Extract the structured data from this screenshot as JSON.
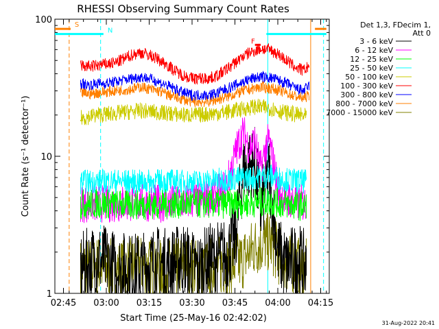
{
  "chart_data": {
    "type": "line",
    "title": "RHESSI Observing Summary Count Rates",
    "xlabel": "Start Time (25-May-16 02:42:02)",
    "ylabel": "Count Rate (s⁻¹ detector⁻¹)",
    "x_unit": "minutes after 02:42:02",
    "xlim": [
      0,
      96
    ],
    "ylim": [
      1,
      100
    ],
    "y_scale": "log",
    "x_ticks": [
      {
        "value": 3,
        "label": "02:45"
      },
      {
        "value": 18,
        "label": "03:00"
      },
      {
        "value": 33,
        "label": "03:15"
      },
      {
        "value": 48,
        "label": "03:30"
      },
      {
        "value": 63,
        "label": "03:45"
      },
      {
        "value": 78,
        "label": "04:00"
      },
      {
        "value": 93,
        "label": "04:15"
      }
    ],
    "y_ticks": [
      {
        "value": 1,
        "label": "1"
      },
      {
        "value": 10,
        "label": "10"
      },
      {
        "value": 100,
        "label": "100"
      }
    ],
    "legend_title": [
      "Det 1,3, FDecim 1,",
      "Att 0"
    ],
    "legend_position": "right",
    "series": [
      {
        "name": "3 - 6 keV",
        "color": "#000000",
        "x": [
          9,
          15,
          20,
          25,
          30,
          35,
          40,
          45,
          50,
          55,
          60,
          63,
          66,
          70,
          72,
          75,
          78,
          81,
          85,
          88
        ],
        "values": [
          1.5,
          1.8,
          1.6,
          1.5,
          1.5,
          1.7,
          1.6,
          1.8,
          1.5,
          1.8,
          1.9,
          2.5,
          8.0,
          9.0,
          4.0,
          7.5,
          2.0,
          1.6,
          1.8,
          1.5
        ]
      },
      {
        "name": "6 - 12 keV",
        "color": "#ff00ff",
        "x": [
          9,
          20,
          30,
          40,
          50,
          55,
          60,
          62,
          64,
          66,
          68,
          70,
          72,
          74,
          75,
          76,
          78,
          80,
          85,
          88
        ],
        "values": [
          4.5,
          4.5,
          4.6,
          4.5,
          4.8,
          5.0,
          6.0,
          8.5,
          12.0,
          15.0,
          11.5,
          13.0,
          8.0,
          12.0,
          13.0,
          10.0,
          6.0,
          5.0,
          4.6,
          4.5
        ]
      },
      {
        "name": "12 - 25 keV",
        "color": "#00ff00",
        "x": [
          9,
          20,
          30,
          40,
          50,
          60,
          70,
          75,
          80,
          88
        ],
        "values": [
          4.5,
          4.5,
          4.4,
          4.5,
          4.5,
          4.5,
          4.6,
          4.7,
          4.5,
          4.3
        ]
      },
      {
        "name": "25 - 50 keV",
        "color": "#00ffff",
        "x": [
          9,
          20,
          30,
          40,
          50,
          60,
          70,
          75,
          80,
          88
        ],
        "values": [
          6.5,
          6.6,
          6.5,
          6.6,
          6.5,
          6.8,
          7.0,
          7.2,
          6.8,
          6.5
        ]
      },
      {
        "name": "50 - 100 keV",
        "color": "#cccc00",
        "x": [
          9,
          15,
          20,
          25,
          30,
          35,
          40,
          45,
          50,
          55,
          60,
          65,
          70,
          75,
          80,
          85,
          88
        ],
        "values": [
          19,
          20,
          20.5,
          21,
          21.5,
          21,
          20.5,
          20,
          20,
          20.5,
          21,
          22,
          23,
          22.5,
          21,
          20,
          19.5
        ]
      },
      {
        "name": "100 - 300 keV",
        "color": "#ff0000",
        "x": [
          9,
          12,
          15,
          18,
          21,
          24,
          27,
          30,
          33,
          36,
          39,
          42,
          45,
          48,
          51,
          54,
          57,
          60,
          63,
          66,
          69,
          72,
          75,
          78,
          81,
          84,
          87,
          89
        ],
        "values": [
          46,
          45,
          46,
          47,
          48,
          51,
          55,
          57,
          55,
          51,
          47,
          42,
          39,
          37,
          37,
          37,
          39,
          43,
          48,
          54,
          58,
          61,
          60,
          56,
          50,
          45,
          42,
          46
        ]
      },
      {
        "name": "300 - 800 keV",
        "color": "#0000ff",
        "x": [
          9,
          12,
          15,
          18,
          21,
          24,
          27,
          30,
          33,
          36,
          39,
          42,
          45,
          48,
          51,
          54,
          57,
          60,
          63,
          66,
          69,
          72,
          75,
          78,
          81,
          84,
          87,
          89
        ],
        "values": [
          34,
          33,
          34,
          34,
          35,
          36,
          37,
          38,
          37,
          35,
          33,
          31,
          29,
          28,
          28,
          28,
          29,
          31,
          33,
          35,
          37,
          38,
          37.5,
          36,
          34,
          31.5,
          30,
          33
        ]
      },
      {
        "name": "800 - 7000 keV",
        "color": "#ff8000",
        "x": [
          9,
          12,
          15,
          18,
          21,
          24,
          27,
          30,
          33,
          36,
          39,
          42,
          45,
          48,
          51,
          54,
          57,
          60,
          63,
          66,
          69,
          72,
          75,
          78,
          81,
          84,
          87,
          89
        ],
        "values": [
          29,
          28.5,
          29,
          29.5,
          30,
          30.5,
          31,
          32,
          31,
          30,
          28.5,
          27,
          26,
          25,
          25,
          25,
          26,
          27,
          28.5,
          30,
          31,
          32,
          31.5,
          30.5,
          29,
          27.5,
          26.5,
          28
        ]
      },
      {
        "name": "7000 - 15000 keV",
        "color": "#808000",
        "x": [
          9,
          15,
          20,
          25,
          30,
          35,
          40,
          45,
          50,
          55,
          60,
          65,
          70,
          75,
          80,
          85,
          88
        ],
        "values": [
          1.5,
          1.6,
          1.5,
          1.5,
          1.6,
          1.5,
          1.5,
          1.6,
          1.5,
          1.6,
          1.6,
          1.7,
          2.2,
          2.4,
          1.7,
          1.6,
          1.5
        ]
      }
    ],
    "flag_bars": [
      {
        "label": "S",
        "color": "#ff8000",
        "segments": [
          [
            0,
            5.5
          ],
          [
            91,
            95
          ]
        ],
        "level": 85
      },
      {
        "label": "N",
        "color": "#00ffff",
        "segments": [
          [
            0,
            17
          ],
          [
            74,
            95
          ]
        ],
        "level": 78
      },
      {
        "label": "F",
        "color": "#ff0000",
        "segments": [
          [
            70,
            72
          ]
        ],
        "level": 65
      }
    ],
    "vlines": [
      {
        "x": 5,
        "color": "#ff8000",
        "style": "dashed"
      },
      {
        "x": 16,
        "color": "#00ffff",
        "style": "dashed"
      },
      {
        "x": 74.5,
        "color": "#00ffff",
        "style": "solid"
      },
      {
        "x": 89.5,
        "color": "#ff8000",
        "style": "solid"
      },
      {
        "x": 94,
        "color": "#00ffff",
        "style": "dashed"
      }
    ],
    "footer": "31-Aug-2022 20:41"
  }
}
